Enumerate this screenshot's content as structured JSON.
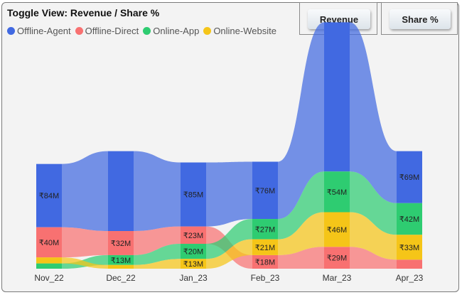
{
  "header": {
    "title": "Toggle View: Revenue / Share %"
  },
  "buttons": {
    "revenue_label": "Revenue",
    "share_label": "Share %"
  },
  "chart_data": {
    "type": "ribbon",
    "categories": [
      "Nov_22",
      "Dec_22",
      "Jan_23",
      "Feb_23",
      "Mar_23",
      "Apr_23"
    ],
    "unit_prefix": "₹",
    "unit_suffix": "M",
    "series": [
      {
        "name": "Offline-Agent",
        "color": "#4169e1",
        "values": [
          84,
          106,
          85,
          76,
          198,
          69
        ]
      },
      {
        "name": "Offline-Direct",
        "color": "#f87171",
        "values": [
          40,
          32,
          23,
          18,
          29,
          12
        ]
      },
      {
        "name": "Online-App",
        "color": "#2ecc71",
        "values": [
          7,
          13,
          20,
          27,
          54,
          42
        ]
      },
      {
        "name": "Online-Website",
        "color": "#f5c518",
        "values": [
          8,
          5,
          13,
          21,
          46,
          33
        ]
      }
    ],
    "labels_shown": [
      [
        "₹84M",
        "",
        "₹85M",
        "₹76M",
        "",
        "₹69M"
      ],
      [
        "₹40M",
        "₹32M",
        "₹23M",
        "₹18M",
        "₹29M",
        ""
      ],
      [
        "",
        "₹13M",
        "₹20M",
        "₹27M",
        "₹54M",
        "₹42M"
      ],
      [
        "",
        "",
        "₹13M",
        "₹21M",
        "₹46M",
        "₹33M"
      ]
    ],
    "legend_position": "top-left",
    "grid": false
  }
}
